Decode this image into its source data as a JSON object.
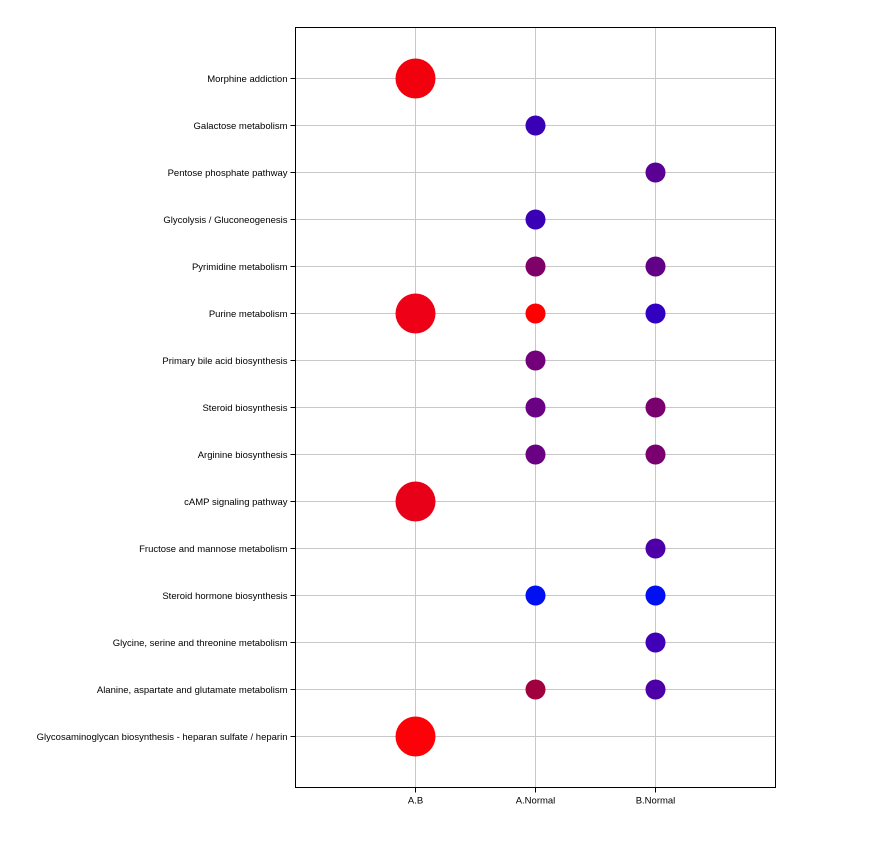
{
  "chart_data": {
    "type": "scatter",
    "title": "",
    "xlabel": "",
    "ylabel": "",
    "grid": true,
    "columns": [
      "A.B",
      "A.Normal",
      "B.Normal"
    ],
    "rows": [
      "Morphine addiction",
      "Galactose metabolism",
      "Pentose phosphate pathway",
      "Glycolysis / Gluconeogenesis",
      "Pyrimidine metabolism",
      "Purine metabolism",
      "Primary bile acid biosynthesis",
      "Steroid biosynthesis",
      "Arginine biosynthesis",
      "cAMP signaling pathway",
      "Fructose and mannose metabolism",
      "Steroid hormone biosynthesis",
      "Glycine, serine and threonine metabolism",
      "Alanine, aspartate and glutamate metabolism",
      "Glycosaminoglycan biosynthesis - heparan sulfate / heparin"
    ],
    "points": [
      {
        "row": 0,
        "col": 0,
        "size": 2,
        "color": "#f3000f"
      },
      {
        "row": 1,
        "col": 1,
        "size": 1,
        "color": "#3a00b5"
      },
      {
        "row": 2,
        "col": 2,
        "size": 1,
        "color": "#5a0095"
      },
      {
        "row": 3,
        "col": 1,
        "size": 1,
        "color": "#3a00b5"
      },
      {
        "row": 4,
        "col": 1,
        "size": 1,
        "color": "#80006a"
      },
      {
        "row": 4,
        "col": 2,
        "size": 1,
        "color": "#630088"
      },
      {
        "row": 5,
        "col": 0,
        "size": 2,
        "color": "#ee0016"
      },
      {
        "row": 5,
        "col": 1,
        "size": 1,
        "color": "#ff0000"
      },
      {
        "row": 5,
        "col": 2,
        "size": 1,
        "color": "#3200c0"
      },
      {
        "row": 6,
        "col": 1,
        "size": 1,
        "color": "#73007a"
      },
      {
        "row": 7,
        "col": 1,
        "size": 1,
        "color": "#6a0083"
      },
      {
        "row": 7,
        "col": 2,
        "size": 1,
        "color": "#7a0070"
      },
      {
        "row": 8,
        "col": 1,
        "size": 1,
        "color": "#6a0083"
      },
      {
        "row": 8,
        "col": 2,
        "size": 1,
        "color": "#7a0070"
      },
      {
        "row": 9,
        "col": 0,
        "size": 2,
        "color": "#e80018"
      },
      {
        "row": 10,
        "col": 2,
        "size": 1,
        "color": "#4d00a8"
      },
      {
        "row": 11,
        "col": 1,
        "size": 1,
        "color": "#0010f0"
      },
      {
        "row": 11,
        "col": 2,
        "size": 1,
        "color": "#0010f0"
      },
      {
        "row": 12,
        "col": 2,
        "size": 1,
        "color": "#4000b8"
      },
      {
        "row": 13,
        "col": 1,
        "size": 1,
        "color": "#a00040"
      },
      {
        "row": 13,
        "col": 2,
        "size": 1,
        "color": "#4d00a8"
      },
      {
        "row": 14,
        "col": 0,
        "size": 2,
        "color": "#ff0008"
      }
    ]
  }
}
